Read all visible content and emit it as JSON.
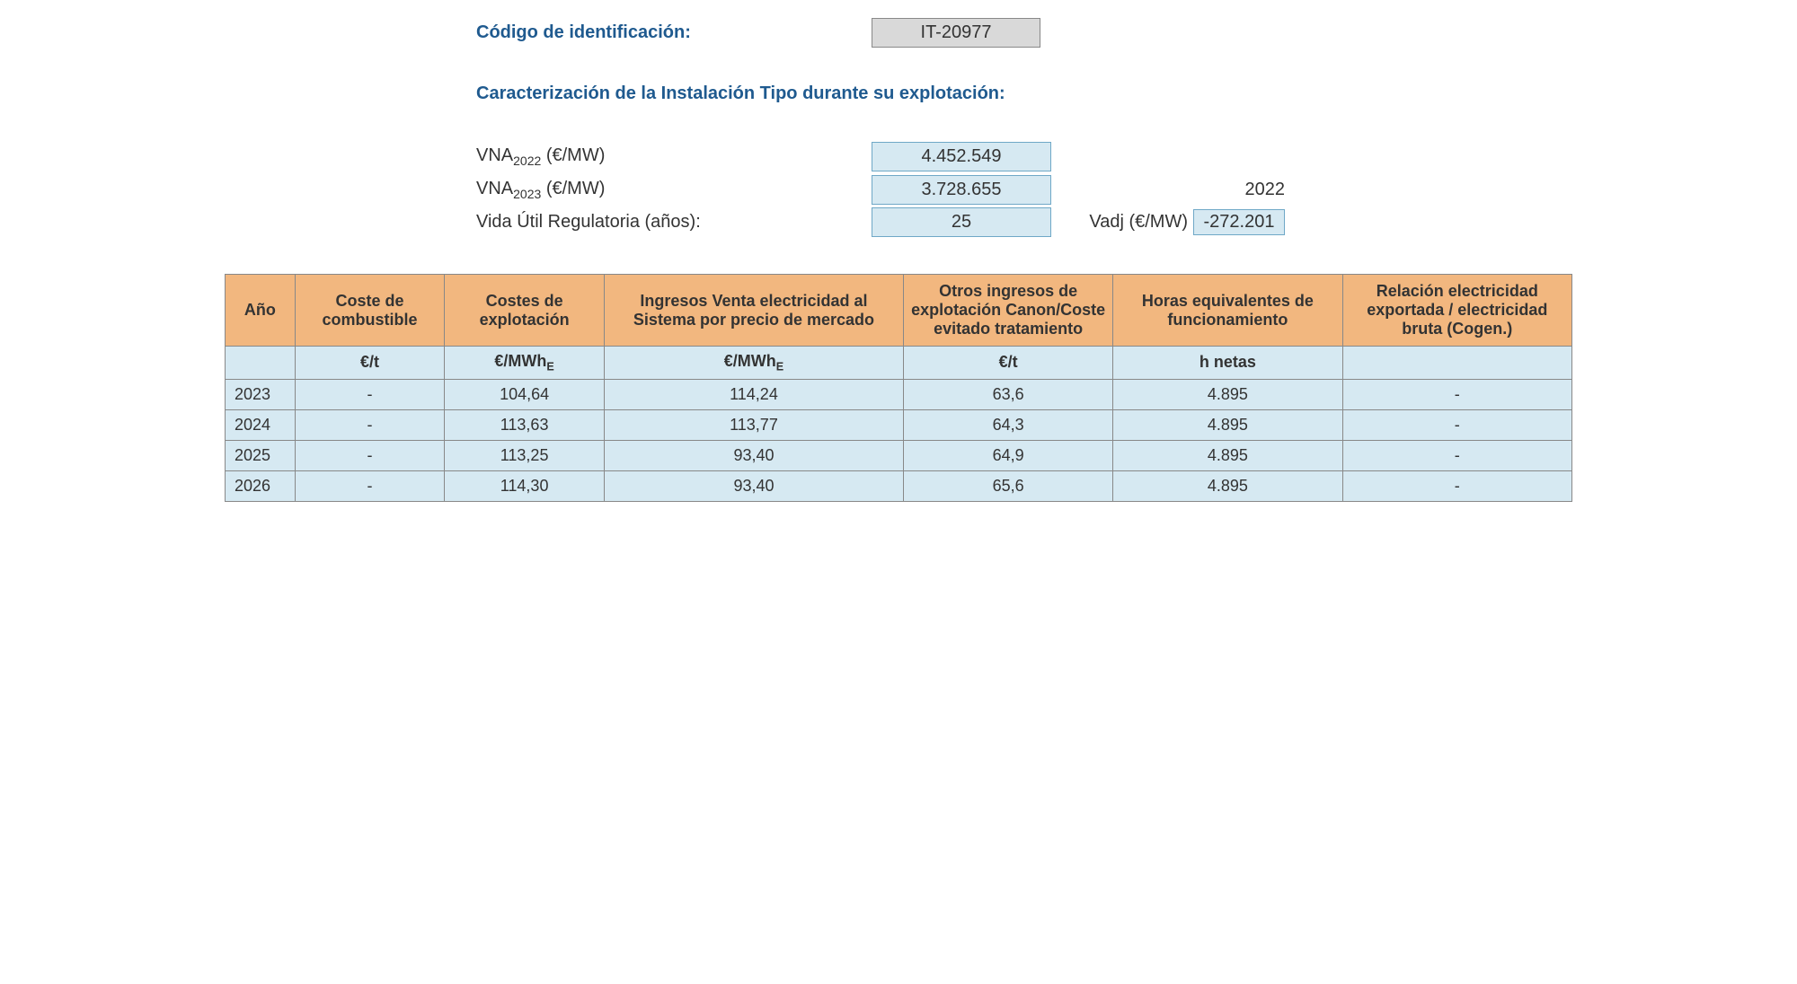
{
  "header": {
    "id_label": "Código de identificación:",
    "id_value": "IT-20977",
    "section_title": "Caracterización de la Instalación Tipo durante su explotación:"
  },
  "params": {
    "vna2022_label_pre": "VNA",
    "vna2022_label_sub": "2022",
    "vna2022_label_post": " (€/MW)",
    "vna2022_value": "4.452.549",
    "vna2023_label_pre": "VNA",
    "vna2023_label_sub": "2023",
    "vna2023_label_post": " (€/MW)",
    "vna2023_value": "3.728.655",
    "vida_label": "Vida Útil Regulatoria (años):",
    "vida_value": "25",
    "year_header": "2022",
    "vadj_label": "Vadj (€/MW)",
    "vadj_value": "-272.201"
  },
  "table": {
    "columns": [
      "Año",
      "Coste de combustible",
      "Costes de explotación",
      "Ingresos Venta electricidad al Sistema por precio de mercado",
      "Otros ingresos de explotación Canon/Coste evitado tratamiento",
      "Horas equivalentes de funcionamiento",
      "Relación electricidad exportada / electricidad bruta (Cogen.)"
    ],
    "units": [
      "",
      "€/t",
      "€/MWhE",
      "€/MWhE",
      "€/t",
      "h netas",
      ""
    ],
    "unit_sub": "E",
    "unit_prefix_2": "€/MWh",
    "unit_prefix_3": "€/MWh",
    "rows": [
      {
        "year": "2023",
        "fuel": "-",
        "op": "104,64",
        "rev": "114,24",
        "other": "63,6",
        "hours": "4.895",
        "ratio": "-"
      },
      {
        "year": "2024",
        "fuel": "-",
        "op": "113,63",
        "rev": "113,77",
        "other": "64,3",
        "hours": "4.895",
        "ratio": "-"
      },
      {
        "year": "2025",
        "fuel": "-",
        "op": "113,25",
        "rev": "93,40",
        "other": "64,9",
        "hours": "4.895",
        "ratio": "-"
      },
      {
        "year": "2026",
        "fuel": "-",
        "op": "114,30",
        "rev": "93,40",
        "other": "65,6",
        "hours": "4.895",
        "ratio": "-"
      }
    ]
  },
  "style": {
    "header_blue": "#1f5a8f",
    "orange_header": "#f2b77f",
    "blue_cell": "#d6e9f2",
    "gray_box": "#d9d9d9",
    "border": "#888888"
  }
}
